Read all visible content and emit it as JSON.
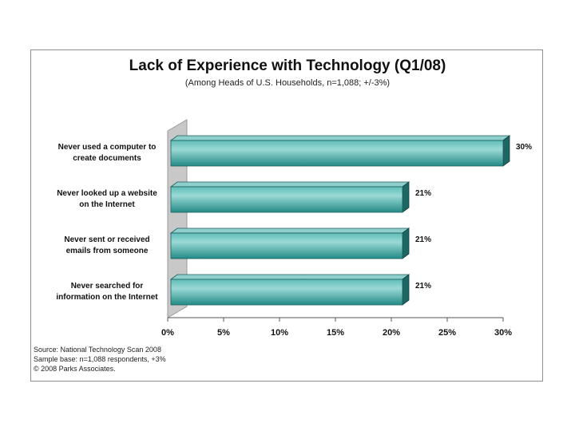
{
  "chart_data": {
    "type": "bar",
    "orientation": "horizontal",
    "title": "Lack of Experience with Technology (Q1/08)",
    "subtitle": "(Among Heads of U.S. Households, n=1,088; +/-3%)",
    "categories": [
      "Never used a computer to create documents",
      "Never looked up a website on the Internet",
      "Never sent or received emails from someone",
      "Never searched for information on the Internet"
    ],
    "category_lines": [
      [
        "Never used a computer to",
        "create documents"
      ],
      [
        "Never looked up a website",
        "on the Internet"
      ],
      [
        "Never sent or received",
        "emails from someone"
      ],
      [
        "Never searched for",
        "information on the Internet"
      ]
    ],
    "values": [
      30,
      21,
      21,
      21
    ],
    "value_labels": [
      "30%",
      "21%",
      "21%",
      "21%"
    ],
    "xlim": [
      0,
      30
    ],
    "xticks": [
      0,
      5,
      10,
      15,
      20,
      25,
      30
    ],
    "xtick_labels": [
      "0%",
      "5%",
      "10%",
      "15%",
      "20%",
      "25%",
      "30%"
    ],
    "grid": false,
    "legend": "none",
    "colors": {
      "bar_front": "#2a9a96",
      "bar_highlight": "#8fd3cf",
      "bar_top": "#8ecfcb",
      "bar_side": "#1c6664",
      "wall": "#c8c8c8"
    }
  },
  "source": {
    "line1": "Source:  National Technology Scan 2008",
    "line2": "Sample base: n=1,088 respondents, +3%",
    "line3": "© 2008 Parks Associates."
  }
}
